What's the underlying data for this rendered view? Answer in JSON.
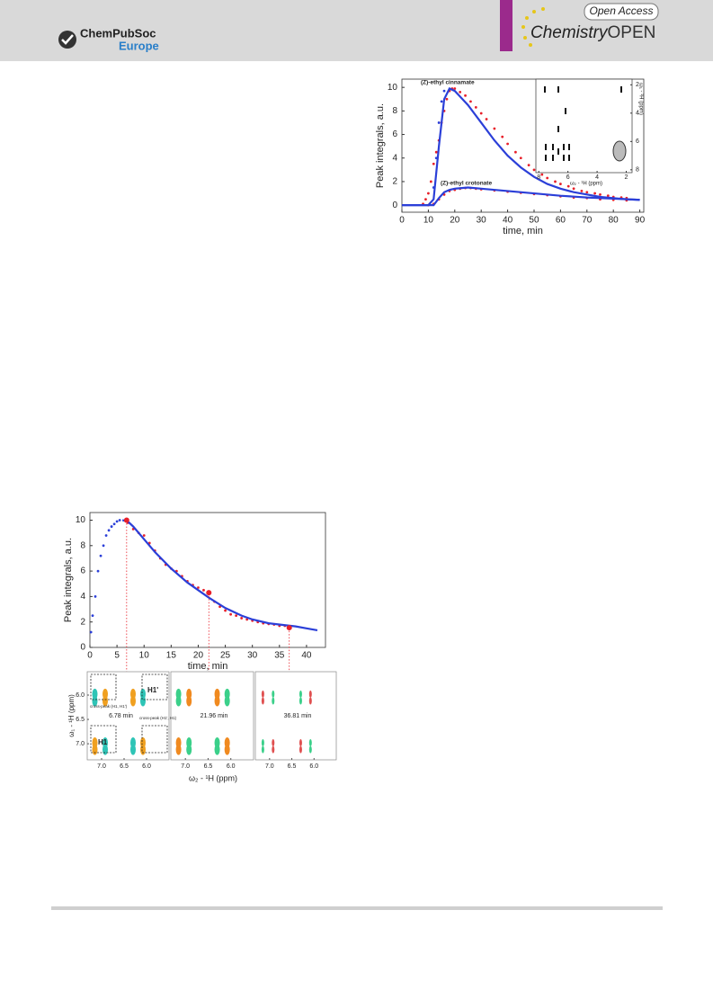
{
  "header": {
    "publisher": "ChemPubSoc",
    "publisher_sub": "Europe",
    "badge": "Open Access",
    "journal": "Chemistry",
    "journal_suffix": "OPEN"
  },
  "figures": [
    {
      "type": "line",
      "ylabel": "Peak integrals, a.u.",
      "xlabel": "time, min",
      "xlim": [
        0,
        91.5
      ],
      "ylim": [
        -0.6,
        10.7
      ],
      "xticks": [
        0,
        10,
        20,
        30,
        40,
        50,
        60,
        70,
        80,
        90
      ],
      "yticks": [
        0,
        2,
        4,
        6,
        8,
        10
      ],
      "annotations": [
        "(Z)-ethyl cinnamate",
        "(Z)-ethyl crotonate"
      ],
      "series": [
        {
          "color": "#e8202a",
          "style": "points",
          "x": [
            8,
            9,
            10,
            11,
            12,
            13,
            14,
            15,
            16,
            17,
            18,
            19,
            20,
            22,
            24,
            26,
            28,
            30,
            32,
            35,
            38,
            40,
            43,
            45,
            48,
            50,
            53,
            55,
            58,
            60,
            63,
            65,
            68,
            70,
            73,
            75,
            78,
            80,
            83,
            85
          ],
          "values": [
            0.1,
            0.5,
            1,
            2,
            3.5,
            4.5,
            5.5,
            7,
            8,
            9,
            9.7,
            9.9,
            9.9,
            9.6,
            9.3,
            8.8,
            8.3,
            7.8,
            7.3,
            6.5,
            5.8,
            5.2,
            4.5,
            4,
            3.4,
            3,
            2.6,
            2.3,
            2,
            1.8,
            1.6,
            1.4,
            1.2,
            1.1,
            1,
            0.9,
            0.8,
            0.7,
            0.65,
            0.6
          ]
        },
        {
          "color": "#2b3fd8",
          "style": "points",
          "x": [
            12,
            13,
            14,
            15,
            16
          ],
          "values": [
            1.5,
            4,
            7,
            8.8,
            9.7
          ]
        },
        {
          "color": "#2b3fd8",
          "style": "line",
          "x": [
            0,
            10,
            12,
            14,
            16,
            18,
            20,
            25,
            30,
            35,
            40,
            45,
            50,
            55,
            60,
            65,
            70,
            75,
            80,
            85,
            90
          ],
          "values": [
            0,
            0,
            0.5,
            5,
            9,
            9.9,
            9.7,
            8.5,
            7,
            5.5,
            4.2,
            3.2,
            2.4,
            1.8,
            1.4,
            1.1,
            0.9,
            0.7,
            0.6,
            0.5,
            0.45
          ]
        },
        {
          "color": "#e8202a",
          "style": "points",
          "x": [
            10,
            12,
            14,
            16,
            18,
            20,
            22,
            24,
            26,
            28,
            30,
            35,
            40,
            45,
            50,
            55,
            60,
            65,
            70,
            75,
            80,
            85
          ],
          "values": [
            0,
            0.1,
            0.5,
            0.9,
            1.2,
            1.3,
            1.4,
            1.45,
            1.45,
            1.4,
            1.35,
            1.25,
            1.15,
            1.05,
            0.95,
            0.85,
            0.75,
            0.65,
            0.6,
            0.5,
            0.45,
            0.4
          ]
        },
        {
          "color": "#2b3fd8",
          "style": "line",
          "x": [
            0,
            12,
            14,
            16,
            18,
            20,
            25,
            30,
            40,
            50,
            60,
            70,
            80,
            90
          ],
          "values": [
            0,
            0,
            0.6,
            1.1,
            1.3,
            1.4,
            1.5,
            1.4,
            1.2,
            1,
            0.8,
            0.65,
            0.55,
            0.45
          ]
        }
      ],
      "inset": {
        "xlabel": "ω₂ - ¹H  (ppm)",
        "ylabel": "ω₁ - ¹H (ppm)",
        "xlim": [
          8.2,
          1.6
        ],
        "ylim": [
          1.6,
          8.2
        ],
        "xticks": [
          8,
          6,
          4,
          2
        ],
        "yticks": [
          2,
          4,
          6,
          8
        ]
      }
    },
    {
      "type": "line",
      "ylabel": "Peak integrals, a.u.",
      "xlabel": "time, min",
      "xlim": [
        0,
        43.5
      ],
      "ylim": [
        0,
        10.6
      ],
      "xticks": [
        0,
        5,
        10,
        15,
        20,
        25,
        30,
        35,
        40
      ],
      "yticks": [
        0,
        2,
        4,
        6,
        8,
        10
      ],
      "series": [
        {
          "color": "#2b3fd8",
          "style": "points",
          "x": [
            0.2,
            0.5,
            1,
            1.5,
            2,
            2.5,
            3,
            3.5,
            4,
            4.5,
            5,
            5.5
          ],
          "values": [
            1.2,
            2.5,
            4,
            6,
            7.2,
            8,
            8.8,
            9.2,
            9.5,
            9.7,
            9.9,
            10
          ]
        },
        {
          "color": "#e8202a",
          "style": "points",
          "x": [
            7,
            8,
            9,
            10,
            11,
            12,
            13,
            14,
            15,
            16,
            17,
            18,
            19,
            20,
            21,
            22,
            23,
            24,
            25,
            26,
            27,
            28,
            29,
            30,
            31,
            32,
            33,
            34,
            35,
            36,
            37
          ],
          "values": [
            9.8,
            9.3,
            9,
            8.8,
            8.2,
            7.6,
            7,
            6.5,
            6.2,
            6,
            5.6,
            5.2,
            4.9,
            4.7,
            4.5,
            4.2,
            3.6,
            3.2,
            2.9,
            2.6,
            2.5,
            2.3,
            2.2,
            2.1,
            2,
            1.9,
            1.85,
            1.8,
            1.7,
            1.7,
            1.6
          ]
        },
        {
          "color": "#2b3fd8",
          "style": "line",
          "x": [
            6,
            7,
            8,
            10,
            12,
            15,
            18,
            20,
            22,
            25,
            28,
            30,
            33,
            36,
            38,
            40,
            42
          ],
          "values": [
            10,
            9.9,
            9.5,
            8.5,
            7.5,
            6.2,
            5.1,
            4.5,
            3.9,
            3.1,
            2.5,
            2.2,
            1.9,
            1.75,
            1.65,
            1.5,
            1.35
          ]
        }
      ],
      "markers": {
        "color": "#e8202a",
        "x": [
          6.78,
          21.96,
          36.81
        ],
        "values": [
          10,
          4.3,
          1.55
        ]
      },
      "panels": {
        "times": [
          "6.78 min",
          "21.96 min",
          "36.81 min"
        ],
        "labels": [
          "cross-peak (H1, H1')",
          "H1'",
          "H1",
          "cross-peak (H1', H1)"
        ],
        "xlabel": "ω₂ - ¹H (ppm)",
        "ylabel": "ω₁ - ¹H (ppm)",
        "xlim": [
          7.32,
          5.5
        ],
        "ylim": [
          5.52,
          7.33
        ],
        "xticks": [
          {
            "value": 7.0,
            "label": "7.0"
          },
          {
            "value": 6.5,
            "label": "6.5"
          },
          {
            "value": 6.0,
            "label": "6.0"
          }
        ],
        "yticks": [
          {
            "value": 6.0,
            "label": "6.0"
          },
          {
            "value": 6.5,
            "label": "6.5"
          },
          {
            "value": 7.0,
            "label": "7.0"
          }
        ]
      }
    }
  ]
}
